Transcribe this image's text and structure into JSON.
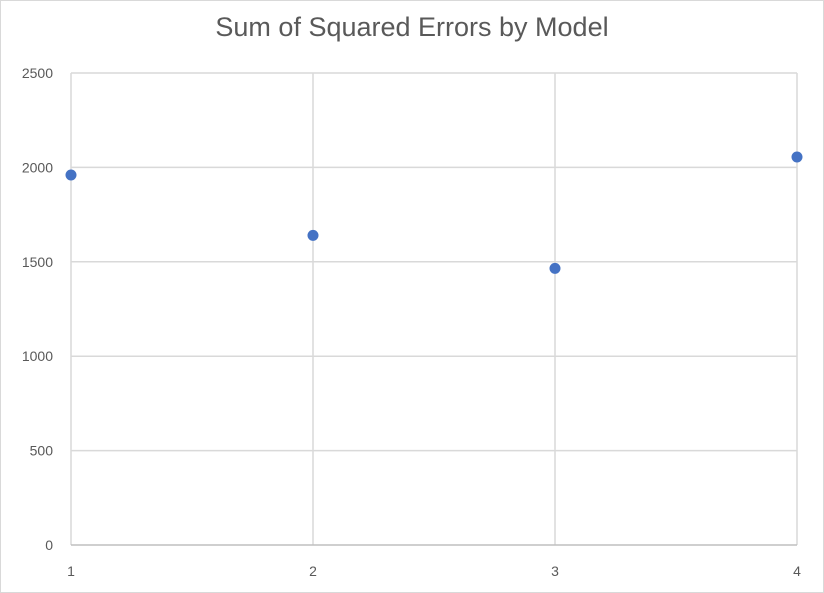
{
  "chart_data": {
    "type": "scatter",
    "title": "Sum of Squared Errors by Model",
    "xlabel": "",
    "ylabel": "",
    "x": [
      1,
      2,
      3,
      4
    ],
    "y": [
      1960,
      1640,
      1465,
      2055
    ],
    "xlim": [
      1,
      4
    ],
    "ylim": [
      0,
      2500
    ],
    "x_ticks": [
      "1",
      "2",
      "3",
      "4"
    ],
    "y_ticks": [
      "0",
      "500",
      "1000",
      "1500",
      "2000",
      "2500"
    ],
    "grid": true,
    "legend": "none",
    "colors": {
      "marker": "#4472C4",
      "grid": "#d9d9d9",
      "text": "#595959"
    }
  }
}
